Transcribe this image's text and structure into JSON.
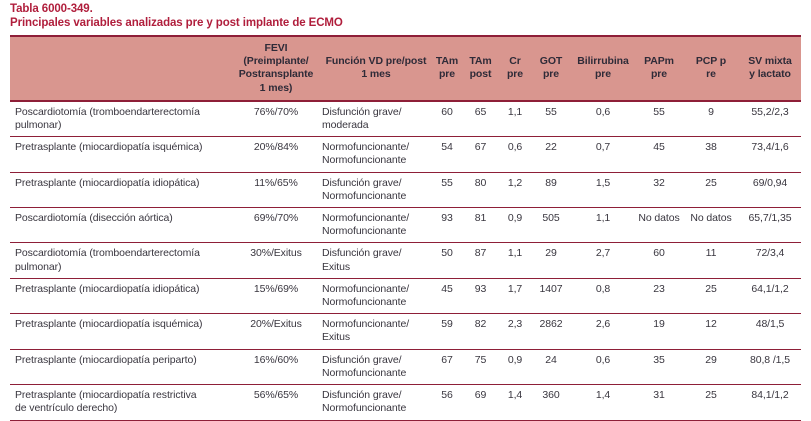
{
  "title": "Tabla 6000-349.",
  "subtitle": "Principales variables analizadas pre y post implante de ECMO",
  "colors": {
    "title": "#b01e3c",
    "header_bg": "#d9968f",
    "rule": "#8e1f38",
    "text": "#39363f"
  },
  "table": {
    "headers": [
      "",
      "FEVI\n(Preimplante/\nPostransplante\n1 mes)",
      "Función VD pre/post\n1 mes",
      "TAm\npre",
      "TAm\npost",
      "Cr\npre",
      "GOT\npre",
      "Bilirrubina\npre",
      "PAPm\npre",
      "PCP p\nre",
      "SV mixta\ny lactato"
    ],
    "rows": [
      {
        "cells": [
          "Poscardiotomía (tromboendarterectomía\npulmonar)",
          "76%/70%",
          "Disfunción grave/\nmoderada",
          "60",
          "65",
          "1,1",
          "55",
          "0,6",
          "55",
          "9",
          "55,2/2,3"
        ]
      },
      {
        "cells": [
          "Pretrasplante (miocardiopatía isquémica)",
          "20%/84%",
          "Normofuncionante/\nNormofuncionante",
          "54",
          "67",
          "0,6",
          "22",
          "0,7",
          "45",
          "38",
          "73,4/1,6"
        ]
      },
      {
        "cells": [
          "Pretrasplante (miocardiopatía idiopática)",
          "11%/65%",
          "Disfunción grave/\nNormofuncionante",
          "55",
          "80",
          "1,2",
          "89",
          "1,5",
          "32",
          "25",
          "69/0,94"
        ]
      },
      {
        "cells": [
          "Poscardiotomía (disección aórtica)",
          "69%/70%",
          "Normofuncionante/\nNormofuncionante",
          "93",
          "81",
          "0,9",
          "505",
          "1,1",
          "No datos",
          "No datos",
          "65,7/1,35"
        ]
      },
      {
        "cells": [
          "Poscardiotomía (tromboendarterectomía\npulmonar)",
          "30%/Exitus",
          "Disfunción grave/\nExitus",
          "50",
          "87",
          "1,1",
          "29",
          "2,7",
          "60",
          "11",
          "72/3,4"
        ]
      },
      {
        "cells": [
          "Pretrasplante (miocardiopatía idiopática)",
          "15%/69%",
          "Normofuncionante/\nNormofuncionante",
          "45",
          "93",
          "1,7",
          "1407",
          "0,8",
          "23",
          "25",
          "64,1/1,2"
        ]
      },
      {
        "cells": [
          "Pretrasplante (miocardiopatía isquémica)",
          "20%/Exitus",
          "Normofuncionante/\nExitus",
          "59",
          "82",
          "2,3",
          "2862",
          "2,6",
          "19",
          "12",
          "48/1,5"
        ]
      },
      {
        "cells": [
          "Pretrasplante (miocardiopatía periparto)",
          "16%/60%",
          "Disfunción grave/\nNormofuncionante",
          "67",
          "75",
          "0,9",
          "24",
          "0,6",
          "35",
          "29",
          "80,8 /1,5"
        ]
      },
      {
        "cells": [
          "Pretrasplante (miocardiopatía restrictiva\nde ventrículo derecho)",
          "56%/65%",
          "Disfunción grave/\nNormofuncionante",
          "56",
          "69",
          "1,4",
          "360",
          "1,4",
          "31",
          "25",
          "84,1/1,2"
        ]
      }
    ]
  }
}
